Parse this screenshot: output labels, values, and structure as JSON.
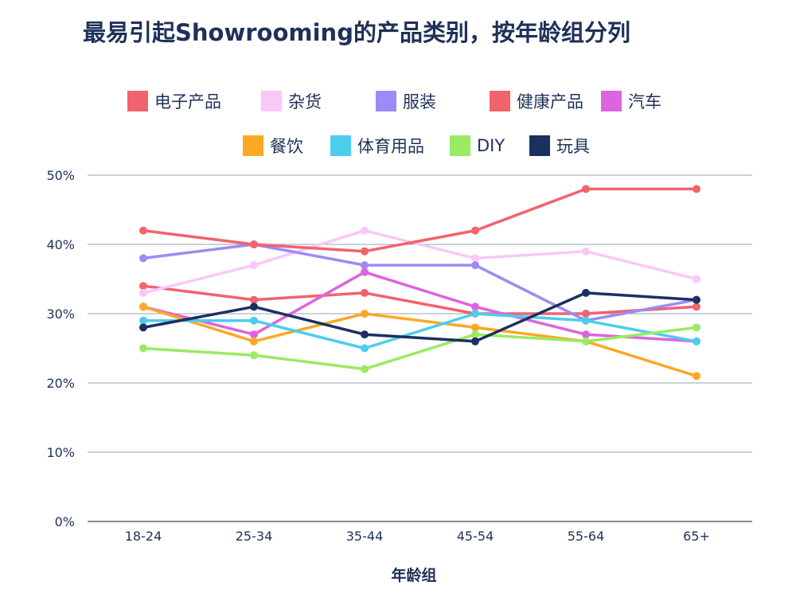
{
  "chart_data": {
    "type": "line",
    "title": "最易引起Showrooming的产品类别，按年龄组分列",
    "xlabel": "年龄组",
    "ylabel": "",
    "categories": [
      "18-24",
      "25-34",
      "35-44",
      "45-54",
      "55-64",
      "65+"
    ],
    "ylim": [
      0,
      50
    ],
    "yticks": [
      "0%",
      "10%",
      "20%",
      "30%",
      "40%",
      "50%"
    ],
    "ytick_values": [
      0,
      10,
      20,
      30,
      40,
      50
    ],
    "grid": true,
    "legend_position": "top",
    "series": [
      {
        "name": "电子产品",
        "color": "#f2626f",
        "values": [
          34,
          32,
          33,
          30,
          30,
          31
        ]
      },
      {
        "name": "杂货",
        "color": "#fbc7f7",
        "values": [
          33,
          37,
          42,
          38,
          39,
          35
        ]
      },
      {
        "name": "服装",
        "color": "#9a8cf7",
        "values": [
          38,
          40,
          37,
          37,
          29,
          32
        ]
      },
      {
        "name": "健康产品",
        "color": "#f2636c",
        "values": [
          42,
          40,
          39,
          42,
          48,
          48
        ]
      },
      {
        "name": "汽车",
        "color": "#dd64de",
        "values": [
          31,
          27,
          36,
          31,
          27,
          26
        ]
      },
      {
        "name": "餐饮",
        "color": "#fba824",
        "values": [
          31,
          26,
          30,
          28,
          26,
          21
        ]
      },
      {
        "name": "体育用品",
        "color": "#4ccdee",
        "values": [
          29,
          29,
          25,
          30,
          29,
          26
        ]
      },
      {
        "name": "DIY",
        "color": "#9aea64",
        "values": [
          25,
          24,
          22,
          27,
          26,
          28
        ]
      },
      {
        "name": "玩具",
        "color": "#1c3060",
        "values": [
          28,
          31,
          27,
          26,
          33,
          32
        ]
      }
    ]
  }
}
